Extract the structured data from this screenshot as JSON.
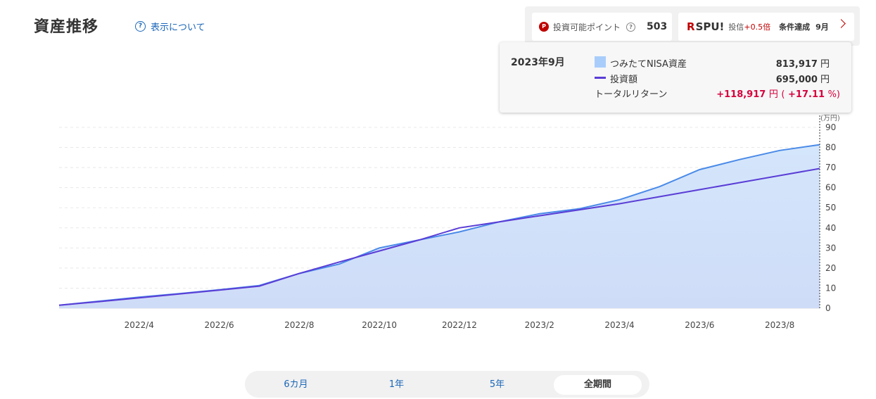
{
  "header": {
    "title": "資産推移",
    "about_label": "表示について",
    "about_icon": "?"
  },
  "points": {
    "icon_letter": "P",
    "label": "投資可能ポイント",
    "help_icon": "?",
    "value": "503"
  },
  "spu": {
    "logo_r": "R",
    "logo_text": "SPU!",
    "desc_prefix": "投信",
    "desc_bonus": "+0.5倍",
    "condition": "条件達成",
    "month": "9月"
  },
  "tooltip": {
    "date": "2023年9月",
    "series1_label": "つみたてNISA資産",
    "series1_value": "813,917",
    "series2_label": "投資額",
    "series2_value": "695,000",
    "unit": "円",
    "return_label": "トータルリターン",
    "return_value": "+118,917",
    "return_unit": "円",
    "return_pct_open": "(",
    "return_pct": "+17.11",
    "return_pct_close": "%)"
  },
  "colors": {
    "asset_line": "#4a8ae8",
    "asset_fill_top": "#d4e6fb",
    "asset_fill_bottom": "#cfdcf8",
    "invest_line": "#5a3dd6",
    "accent_red": "#bf0000",
    "return_red": "#d6003c",
    "link_blue": "#1a66b8"
  },
  "chart_data": {
    "type": "area",
    "y_unit_label": "(万円)",
    "ylim": [
      0,
      90
    ],
    "y_ticks": [
      0,
      10,
      20,
      30,
      40,
      50,
      60,
      70,
      80,
      90
    ],
    "x_tick_labels": [
      "2022/4",
      "2022/6",
      "2022/8",
      "2022/10",
      "2022/12",
      "2023/2",
      "2023/4",
      "2023/6",
      "2023/8"
    ],
    "x_tick_index": [
      2,
      4,
      6,
      8,
      10,
      12,
      14,
      16,
      18
    ],
    "grid": true,
    "series": [
      {
        "name": "つみたてNISA資産",
        "style": "area",
        "values": [
          1.5,
          3.5,
          5.5,
          7.3,
          9.2,
          11.3,
          17.3,
          22,
          30,
          34,
          38,
          43,
          47,
          49.5,
          54,
          60.5,
          69,
          74,
          78.5,
          81.4
        ]
      },
      {
        "name": "投資額",
        "style": "line",
        "values": [
          1.5,
          3.3,
          5.2,
          7.1,
          9.0,
          11.0,
          17.3,
          23.0,
          28.5,
          34.0,
          40.0,
          43.0,
          46.0,
          49.0,
          52.0,
          55.5,
          59.0,
          62.5,
          66.0,
          69.5
        ]
      }
    ]
  },
  "period_tabs": [
    {
      "label": "6カ月"
    },
    {
      "label": "1年"
    },
    {
      "label": "5年"
    },
    {
      "label": "全期間"
    }
  ]
}
